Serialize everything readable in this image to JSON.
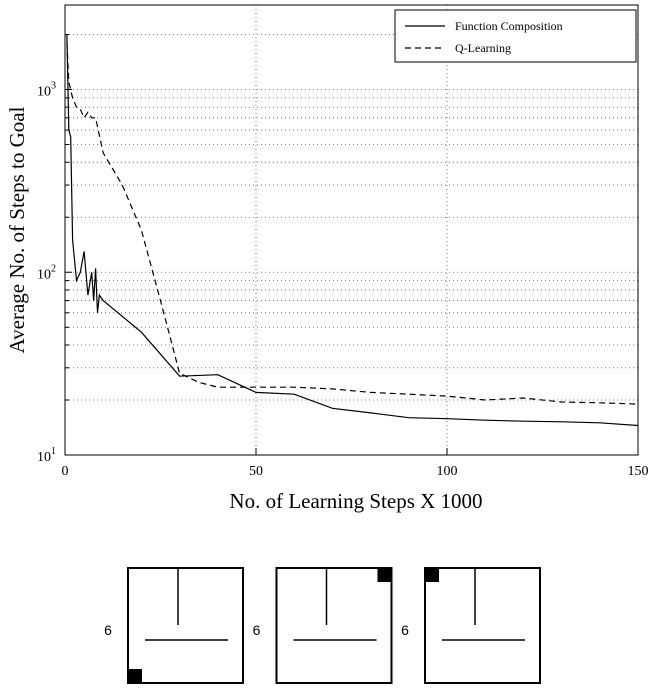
{
  "chart_data": {
    "type": "line",
    "xlabel": "No.  of Learning Steps  X 1000",
    "ylabel": "Average No. of  Steps to Goal",
    "xlim": [
      0,
      150
    ],
    "xticks": [
      0,
      50,
      100,
      150
    ],
    "ylim": [
      10,
      2900
    ],
    "yscale": "log",
    "yticks": [
      {
        "value": 10,
        "label": "10",
        "sup": "1"
      },
      {
        "value": 100,
        "label": "10",
        "sup": "2"
      },
      {
        "value": 1000,
        "label": "10",
        "sup": "3"
      }
    ],
    "minor_yticks": [
      20,
      30,
      40,
      50,
      60,
      70,
      80,
      90,
      200,
      300,
      400,
      500,
      600,
      700,
      800,
      900,
      2000
    ],
    "grid": true,
    "legend": "upper right",
    "series": [
      {
        "name": "Function Composition",
        "color": "#000000",
        "linestyle": "solid",
        "x": [
          0.5,
          1,
          1.5,
          2,
          3,
          4,
          5,
          6,
          7,
          7.5,
          8,
          8.5,
          9,
          10,
          20,
          30,
          40,
          50,
          60,
          70,
          80,
          90,
          100,
          110,
          120,
          130,
          140,
          150
        ],
        "y": [
          2000,
          600,
          550,
          150,
          90,
          100,
          130,
          75,
          100,
          70,
          105,
          60,
          75,
          70,
          47,
          27,
          27.5,
          22,
          21.5,
          18,
          17,
          16,
          15.8,
          15.5,
          15.3,
          15.2,
          15,
          14.5
        ]
      },
      {
        "name": "Q-Learning",
        "color": "#000000",
        "linestyle": "dashed",
        "x": [
          0.5,
          1,
          2,
          3,
          4,
          5,
          6,
          7,
          8,
          10,
          15,
          20,
          25,
          30,
          35,
          40,
          50,
          60,
          70,
          80,
          90,
          100,
          110,
          120,
          130,
          140,
          150
        ],
        "y": [
          1800,
          1100,
          900,
          800,
          780,
          700,
          750,
          700,
          700,
          450,
          300,
          170,
          70,
          28,
          25,
          23.5,
          23.5,
          23.5,
          23,
          22,
          21.5,
          21,
          20,
          20.5,
          19.5,
          19.3,
          19
        ]
      }
    ]
  },
  "diagrams": [
    {
      "label": "6",
      "goal": "bottom-left"
    },
    {
      "label": "6",
      "goal": "top-right"
    },
    {
      "label": "6",
      "goal": "top-left"
    }
  ]
}
